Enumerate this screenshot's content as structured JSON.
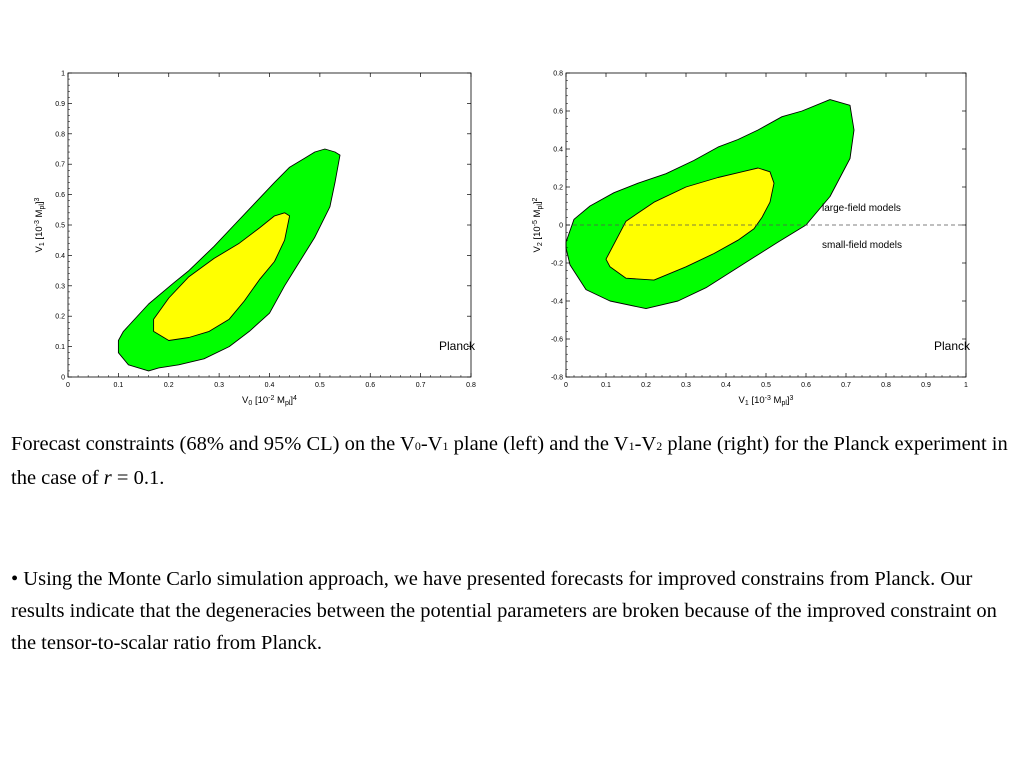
{
  "chart_data": [
    {
      "type": "contour",
      "panel": "left",
      "xlabel_main": "V",
      "xlabel_sub": "0",
      "xlabel_unit": "[10",
      "xlabel_exp": "-2",
      "xlabel_m": "M",
      "xlabel_msub": "pl",
      "xlabel_close": "]",
      "xlabel_pow": "4",
      "ylabel_main": "V",
      "ylabel_sub": "1",
      "ylabel_unit": "[10",
      "ylabel_exp": "-3",
      "ylabel_m": "M",
      "ylabel_msub": "pl",
      "ylabel_close": "]",
      "ylabel_pow": "3",
      "xlim": [
        0,
        0.8
      ],
      "ylim": [
        0,
        1
      ],
      "xticks": [
        0,
        0.1,
        0.2,
        0.3,
        0.4,
        0.5,
        0.6,
        0.7,
        0.8
      ],
      "xtick_labels": [
        "0",
        "0.1",
        "0.2",
        "0.3",
        "0.4",
        "0.5",
        "0.6",
        "0.7",
        "0.8"
      ],
      "yticks": [
        0,
        0.1,
        0.2,
        0.3,
        0.4,
        0.5,
        0.6,
        0.7,
        0.8,
        0.9,
        1.0
      ],
      "ytick_labels": [
        "0",
        "0.1",
        "0.2",
        "0.3",
        "0.4",
        "0.5",
        "0.6",
        "0.7",
        "0.8",
        "0.9",
        "1"
      ],
      "label": "Planck",
      "contours": [
        {
          "level": "95% CL",
          "color": "#00ff00",
          "x": [
            0.11,
            0.16,
            0.21,
            0.24,
            0.29,
            0.33,
            0.37,
            0.41,
            0.44,
            0.47,
            0.49,
            0.51,
            0.53,
            0.54,
            0.53,
            0.52,
            0.49,
            0.46,
            0.43,
            0.4,
            0.36,
            0.32,
            0.27,
            0.22,
            0.18,
            0.16,
            0.12,
            0.1,
            0.1
          ],
          "y": [
            0.15,
            0.24,
            0.31,
            0.35,
            0.43,
            0.5,
            0.57,
            0.64,
            0.69,
            0.72,
            0.74,
            0.75,
            0.74,
            0.73,
            0.64,
            0.56,
            0.46,
            0.38,
            0.3,
            0.21,
            0.15,
            0.1,
            0.06,
            0.04,
            0.03,
            0.02,
            0.04,
            0.08,
            0.12
          ]
        },
        {
          "level": "68% CL",
          "color": "#ffff00",
          "x": [
            0.17,
            0.2,
            0.24,
            0.29,
            0.34,
            0.38,
            0.41,
            0.43,
            0.44,
            0.43,
            0.41,
            0.38,
            0.35,
            0.32,
            0.28,
            0.24,
            0.2,
            0.17
          ],
          "y": [
            0.19,
            0.26,
            0.33,
            0.39,
            0.44,
            0.49,
            0.53,
            0.54,
            0.53,
            0.45,
            0.38,
            0.32,
            0.25,
            0.19,
            0.15,
            0.13,
            0.12,
            0.15
          ]
        }
      ]
    },
    {
      "type": "contour",
      "panel": "right",
      "xlabel_main": "V",
      "xlabel_sub": "1",
      "xlabel_unit": "[10",
      "xlabel_exp": "-3",
      "xlabel_m": "M",
      "xlabel_msub": "pl",
      "xlabel_close": "]",
      "xlabel_pow": "3",
      "ylabel_main": "V",
      "ylabel_sub": "2",
      "ylabel_unit": "[10",
      "ylabel_exp": "-5",
      "ylabel_m": "M",
      "ylabel_msub": "pl",
      "ylabel_close": "]",
      "ylabel_pow": "2",
      "xlim": [
        0,
        1
      ],
      "ylim": [
        -0.8,
        0.8
      ],
      "xticks": [
        0,
        0.1,
        0.2,
        0.3,
        0.4,
        0.5,
        0.6,
        0.7,
        0.8,
        0.9,
        1.0
      ],
      "xtick_labels": [
        "0",
        "0.1",
        "0.2",
        "0.3",
        "0.4",
        "0.5",
        "0.6",
        "0.7",
        "0.8",
        "0.9",
        "1"
      ],
      "yticks": [
        -0.8,
        -0.6,
        -0.4,
        -0.2,
        0,
        0.2,
        0.4,
        0.6,
        0.8
      ],
      "ytick_labels": [
        "-0.8",
        "-0.6",
        "-0.4",
        "-0.2",
        "0",
        "0.2",
        "0.4",
        "0.6",
        "0.8"
      ],
      "label": "Planck",
      "dashed_line_y": 0,
      "annotations": [
        "large-field models",
        "small-field models"
      ],
      "contours": [
        {
          "level": "95% CL",
          "color": "#00ff00",
          "x": [
            0.0,
            0.02,
            0.06,
            0.12,
            0.18,
            0.25,
            0.32,
            0.38,
            0.43,
            0.48,
            0.54,
            0.59,
            0.66,
            0.71,
            0.72,
            0.71,
            0.66,
            0.6,
            0.53,
            0.47,
            0.41,
            0.35,
            0.28,
            0.2,
            0.11,
            0.05,
            0.01,
            0.0
          ],
          "y": [
            -0.09,
            0.03,
            0.1,
            0.17,
            0.22,
            0.27,
            0.34,
            0.41,
            0.45,
            0.5,
            0.57,
            0.6,
            0.66,
            0.63,
            0.5,
            0.35,
            0.15,
            0.0,
            -0.09,
            -0.17,
            -0.25,
            -0.33,
            -0.4,
            -0.44,
            -0.4,
            -0.34,
            -0.21,
            -0.12
          ]
        },
        {
          "level": "68% CL",
          "color": "#ffff00",
          "x": [
            0.1,
            0.15,
            0.22,
            0.3,
            0.38,
            0.44,
            0.48,
            0.51,
            0.52,
            0.51,
            0.49,
            0.47,
            0.43,
            0.37,
            0.3,
            0.22,
            0.15,
            0.11,
            0.1
          ],
          "y": [
            -0.18,
            0.02,
            0.12,
            0.2,
            0.25,
            0.28,
            0.3,
            0.28,
            0.22,
            0.12,
            0.04,
            -0.02,
            -0.08,
            -0.15,
            -0.22,
            -0.29,
            -0.28,
            -0.22,
            -0.18
          ]
        }
      ]
    }
  ],
  "caption": {
    "text_1": "Forecast constraints (68% and 95% CL) on the V",
    "sub_0": "0",
    "dash_1": "-V",
    "sub_1": "1",
    "text_2": " plane (left) and the V",
    "sub_1b": "1",
    "dash_2": "-V",
    "sub_2": "2",
    "text_3": " plane (right) for the Planck experiment in the case of ",
    "r_symbol": "r",
    "text_4": " = 0.1."
  },
  "bullet": {
    "text": "•  Using the Monte Carlo simulation approach, we have presented forecasts for improved constrains from Planck. Our results indicate that the degeneracies between the potential parameters are broken because of the improved constraint on the tensor-to-scalar ratio from Planck."
  }
}
